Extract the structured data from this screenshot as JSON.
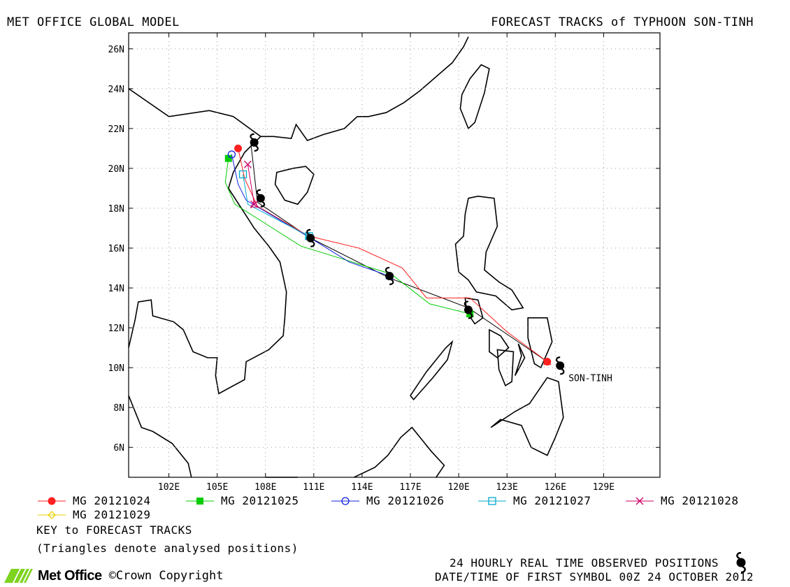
{
  "header": {
    "left_title": "MET OFFICE GLOBAL MODEL",
    "right_title": "FORECAST TRACKS of TYPHOON SON-TINH"
  },
  "map": {
    "lon_range": [
      99.5,
      132.5
    ],
    "lat_range": [
      4.5,
      26.8
    ],
    "lon_ticks": [
      102,
      105,
      108,
      111,
      114,
      117,
      120,
      123,
      126,
      129
    ],
    "lon_tick_labels": [
      "102E",
      "105E",
      "108E",
      "111E",
      "114E",
      "117E",
      "120E",
      "123E",
      "126E",
      "129E"
    ],
    "lat_ticks": [
      6,
      8,
      10,
      12,
      14,
      16,
      18,
      20,
      22,
      24,
      26
    ],
    "lat_tick_labels": [
      "6N",
      "8N",
      "10N",
      "12N",
      "14N",
      "16N",
      "18N",
      "20N",
      "22N",
      "24N",
      "26N"
    ],
    "grid": true,
    "storm_label": "SON-TINH",
    "observed_positions": [
      [
        126.3,
        10.1
      ],
      [
        120.6,
        12.9
      ],
      [
        115.7,
        14.6
      ],
      [
        110.8,
        16.5
      ],
      [
        107.7,
        18.5
      ],
      [
        107.3,
        21.3
      ]
    ]
  },
  "chart_data": {
    "type": "line",
    "title": "FORECAST TRACKS of TYPHOON SON-TINH",
    "xlabel": "",
    "ylabel": "",
    "xlim": [
      99.5,
      132.5
    ],
    "ylim": [
      4.5,
      26.8
    ],
    "grid": true,
    "series": [
      {
        "name": "MG 20121024",
        "color": "#ff2020",
        "marker": "circle-filled",
        "points": [
          [
            125.5,
            10.3
          ],
          [
            123.0,
            11.8
          ],
          [
            120.7,
            13.5
          ],
          [
            118.0,
            13.5
          ],
          [
            116.5,
            15.0
          ],
          [
            113.8,
            16.0
          ],
          [
            110.7,
            16.6
          ],
          [
            107.5,
            18.1
          ],
          [
            106.7,
            19.5
          ],
          [
            106.3,
            21.0
          ]
        ]
      },
      {
        "name": "MG 20121025",
        "color": "#00cc00",
        "marker": "square-filled",
        "points": [
          [
            120.7,
            12.7
          ],
          [
            118.2,
            13.2
          ],
          [
            115.8,
            14.7
          ],
          [
            110.2,
            16.1
          ],
          [
            106.1,
            18.2
          ],
          [
            105.5,
            19.3
          ],
          [
            105.7,
            20.5
          ]
        ]
      },
      {
        "name": "MG 20121026",
        "color": "#1020e0",
        "marker": "circle-open",
        "points": [
          [
            115.7,
            14.6
          ],
          [
            113.2,
            15.3
          ],
          [
            110.6,
            16.6
          ],
          [
            106.8,
            18.4
          ],
          [
            106.3,
            19.2
          ],
          [
            105.9,
            20.7
          ]
        ]
      },
      {
        "name": "MG 20121027",
        "color": "#00aacc",
        "marker": "square-open",
        "points": [
          [
            110.7,
            16.6
          ],
          [
            106.9,
            18.2
          ],
          [
            106.6,
            19.7
          ]
        ]
      },
      {
        "name": "MG 20121028",
        "color": "#cc0066",
        "marker": "x",
        "points": [
          [
            107.3,
            18.2
          ],
          [
            106.9,
            20.2
          ]
        ]
      },
      {
        "name": "MG 20121029",
        "color": "#e6d200",
        "marker": "diamond-open",
        "points": []
      }
    ],
    "analysed_track": {
      "color": "#000000",
      "points": [
        [
          125.5,
          10.3
        ],
        [
          120.6,
          13.0
        ],
        [
          115.7,
          14.5
        ],
        [
          110.8,
          16.5
        ],
        [
          107.5,
          18.3
        ],
        [
          107.1,
          21.2
        ]
      ]
    }
  },
  "legend": {
    "entries": [
      {
        "label": "MG 20121024",
        "color": "#ff2020",
        "marker": "circle-filled"
      },
      {
        "label": "MG 20121025",
        "color": "#00cc00",
        "marker": "square-filled"
      },
      {
        "label": "MG 20121026",
        "color": "#1020e0",
        "marker": "circle-open"
      },
      {
        "label": "MG 20121027",
        "color": "#00aacc",
        "marker": "square-open"
      },
      {
        "label": "MG 20121028",
        "color": "#cc0066",
        "marker": "x"
      },
      {
        "label": "MG 20121029",
        "color": "#e6d200",
        "marker": "diamond-open"
      }
    ],
    "key_title": "KEY to FORECAST TRACKS",
    "key_note": "(Triangles denote analysed positions)"
  },
  "footer": {
    "observed_note": "24 HOURLY REAL TIME OBSERVED POSITIONS",
    "first_symbol": "DATE/TIME OF FIRST SYMBOL 00Z 24 OCTOBER 2012",
    "logo_text": "Met Office",
    "copyright": "©Crown Copyright",
    "typhoon_icon": "typhoon-symbol-icon",
    "logo_icon": "met-office-stripes-icon"
  }
}
